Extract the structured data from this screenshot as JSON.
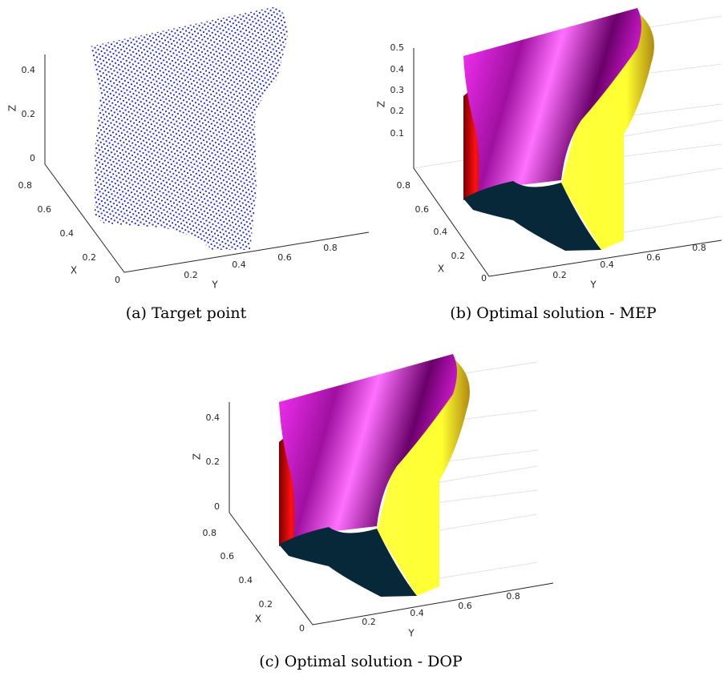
{
  "panels": [
    {
      "caption": "(a) Target point",
      "axes": {
        "z": {
          "label": "Z",
          "ticks": [
            "0",
            "0.2",
            "0.4"
          ]
        },
        "x": {
          "label": "X",
          "ticks": [
            "0",
            "0.2",
            "0.4",
            "0.6",
            "0.8"
          ]
        },
        "y": {
          "label": "Y",
          "ticks": [
            "0.2",
            "0.4",
            "0.6",
            "0.8"
          ]
        }
      }
    },
    {
      "caption": "(b) Optimal solution - MEP",
      "axes": {
        "z": {
          "label": "Z",
          "ticks": [
            "0.1",
            "0.2",
            "0.3",
            "0.4",
            "0.5"
          ]
        },
        "x": {
          "label": "X",
          "ticks": [
            "0",
            "0.2",
            "0.4",
            "0.6",
            "0.8"
          ]
        },
        "y": {
          "label": "Y",
          "ticks": [
            "0.2",
            "0.4",
            "0.6",
            "0.8"
          ]
        }
      }
    },
    {
      "caption": "(c) Optimal solution - DOP",
      "axes": {
        "z": {
          "label": "Z",
          "ticks": [
            "0",
            "0.2",
            "0.4"
          ]
        },
        "x": {
          "label": "X",
          "ticks": [
            "0",
            "0.2",
            "0.4",
            "0.6",
            "0.8"
          ]
        },
        "y": {
          "label": "Y",
          "ticks": [
            "0.2",
            "0.4",
            "0.6",
            "0.8"
          ]
        }
      }
    }
  ]
}
